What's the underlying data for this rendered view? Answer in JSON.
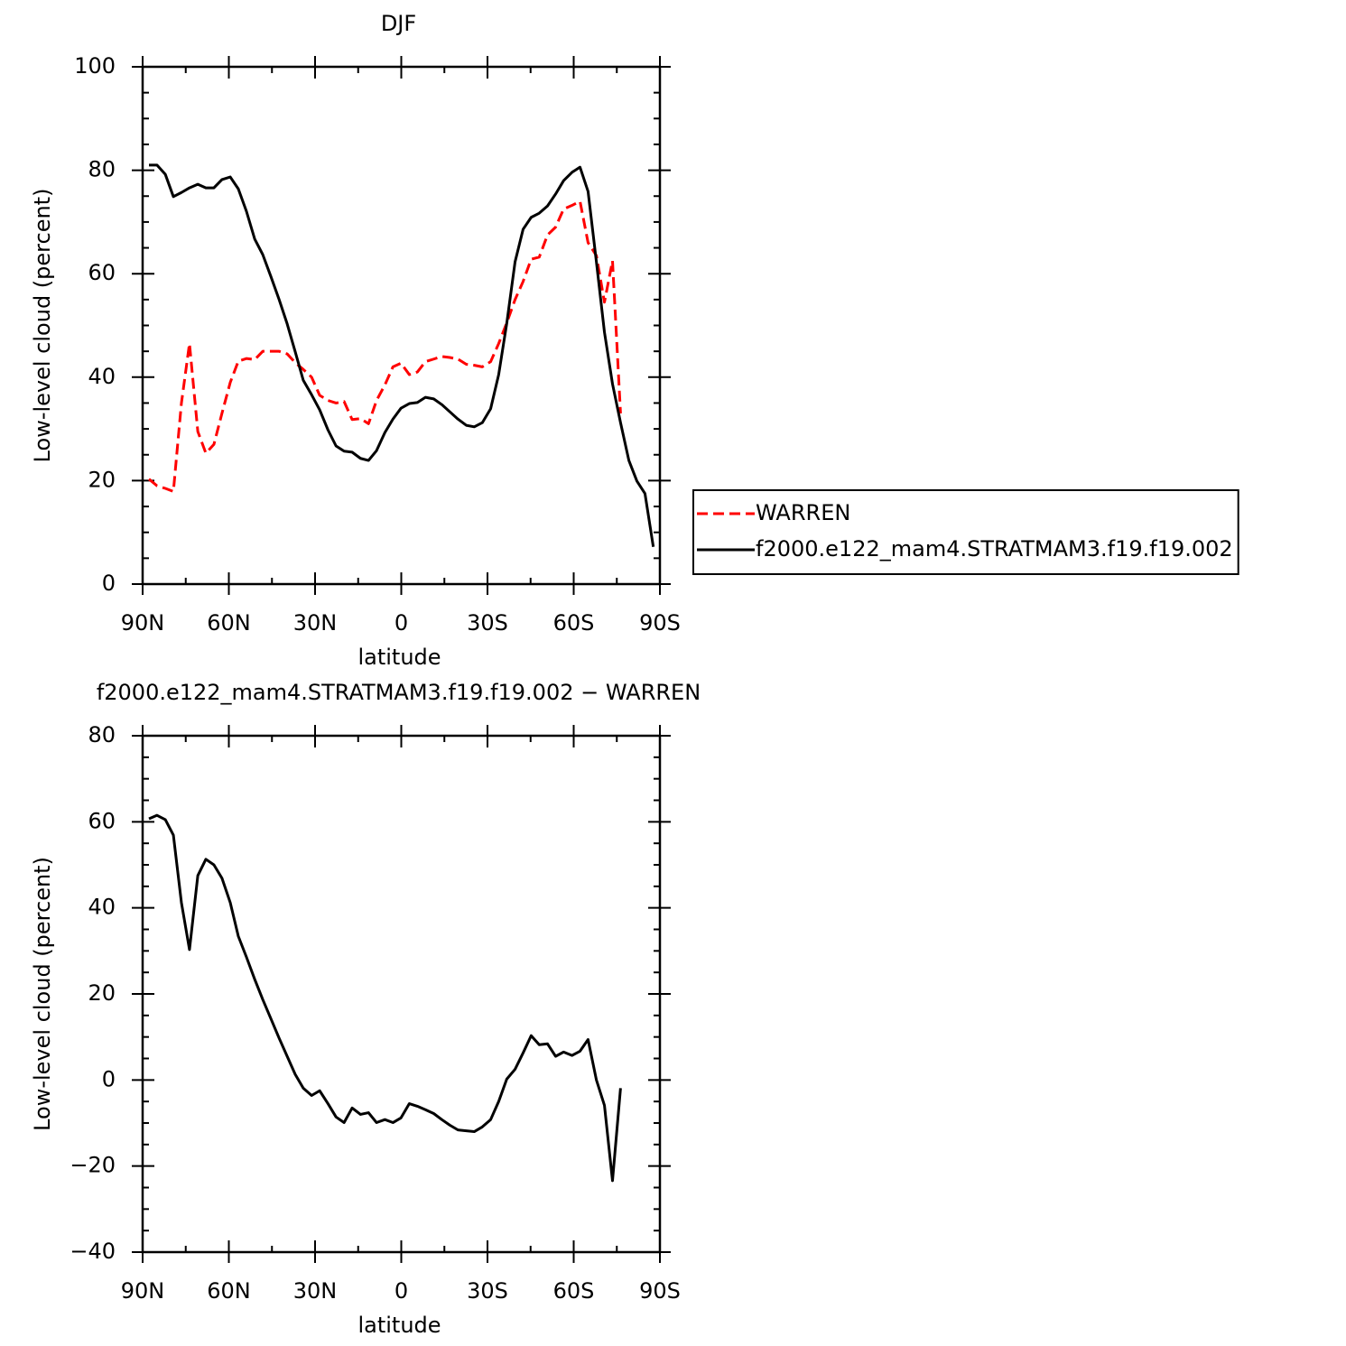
{
  "chart_data": [
    {
      "type": "line",
      "title": "DJF",
      "x_label": "latitude",
      "y_label": "Low-level cloud (percent)",
      "x": [
        87.8,
        85.0,
        82.1,
        79.3,
        76.5,
        73.7,
        70.8,
        68.0,
        65.2,
        62.4,
        59.5,
        56.7,
        53.9,
        51.0,
        48.2,
        45.4,
        42.5,
        39.7,
        36.9,
        34.1,
        31.2,
        28.4,
        25.5,
        22.7,
        19.9,
        17.1,
        14.2,
        11.4,
        8.6,
        5.7,
        2.9,
        0.1,
        -2.8,
        -5.6,
        -8.4,
        -11.3,
        -14.1,
        -16.9,
        -19.7,
        -22.6,
        -25.4,
        -28.2,
        -31.1,
        -33.9,
        -36.7,
        -39.6,
        -42.4,
        -45.2,
        -48.0,
        -50.9,
        -53.7,
        -56.5,
        -59.4,
        -62.2,
        -65.0,
        -67.9,
        -70.7,
        -73.5,
        -76.3,
        -79.2,
        -82.0,
        -84.8,
        -87.7
      ],
      "xlim": [
        90,
        -90
      ],
      "xticks": [
        {
          "value": 90,
          "label": "90N"
        },
        {
          "value": 60,
          "label": "60N"
        },
        {
          "value": 30,
          "label": "30N"
        },
        0,
        {
          "value": -30,
          "label": "30S"
        },
        {
          "value": -60,
          "label": "60S"
        },
        {
          "value": -90,
          "label": "90S"
        }
      ],
      "ylim": [
        0,
        100
      ],
      "yticks": [
        0,
        20,
        40,
        60,
        80,
        100
      ],
      "legend": "right",
      "series": [
        {
          "name": "WARREN",
          "color": "#ff0000",
          "line_style": "dashed",
          "values": [
            20.3,
            19.0,
            18.5,
            17.9,
            35.0,
            46.5,
            29.5,
            25.3,
            27.0,
            33.0,
            39.0,
            43.1,
            43.6,
            43.4,
            45.0,
            45.0,
            45.0,
            44.5,
            42.8,
            41.5,
            40.0,
            36.5,
            35.5,
            35.0,
            35.3,
            31.8,
            32.0,
            31.0,
            35.5,
            38.5,
            42.0,
            42.7,
            40.5,
            41.0,
            43.0,
            43.5,
            44.0,
            43.8,
            43.5,
            42.5,
            42.3,
            42.0,
            43.0,
            46.5,
            50.5,
            55.0,
            58.5,
            62.8,
            63.2,
            67.5,
            69.0,
            72.5,
            73.2,
            74.0,
            66.0,
            63.5,
            54.5,
            62.5,
            33.0,
            null,
            null,
            null,
            null
          ]
        },
        {
          "name": "f2000.e122_mam4.STRATMAM3.f19.f19.002",
          "color": "#000000",
          "line_style": "solid",
          "values": [
            81.0,
            81.0,
            79.2,
            74.9,
            75.7,
            76.6,
            77.3,
            76.6,
            76.6,
            78.2,
            78.7,
            76.4,
            72.1,
            66.7,
            63.7,
            59.5,
            55.0,
            50.3,
            44.9,
            39.4,
            36.6,
            33.7,
            29.8,
            26.7,
            25.7,
            25.5,
            24.3,
            23.9,
            25.8,
            29.3,
            31.9,
            34.0,
            34.9,
            35.1,
            36.1,
            35.8,
            34.7,
            33.3,
            31.9,
            30.7,
            30.4,
            31.2,
            33.9,
            40.5,
            50.4,
            62.3,
            68.6,
            70.9,
            71.7,
            73.1,
            75.4,
            78.0,
            79.6,
            80.6,
            75.9,
            62.3,
            48.7,
            38.7,
            31.2,
            23.9,
            19.9,
            17.5,
            7.2
          ]
        }
      ]
    },
    {
      "type": "line",
      "title": "f2000.e122_mam4.STRATMAM3.f19.f19.002 − WARREN",
      "x_label": "latitude",
      "y_label": "Low-level cloud (percent)",
      "x": [
        87.8,
        85.0,
        82.1,
        79.3,
        76.5,
        73.7,
        70.8,
        68.0,
        65.2,
        62.4,
        59.5,
        56.7,
        53.9,
        51.0,
        48.2,
        45.4,
        42.5,
        39.7,
        36.9,
        34.1,
        31.2,
        28.4,
        25.5,
        22.7,
        19.9,
        17.1,
        14.2,
        11.4,
        8.6,
        5.7,
        2.9,
        0.1,
        -2.8,
        -5.6,
        -8.4,
        -11.3,
        -14.1,
        -16.9,
        -19.7,
        -22.6,
        -25.4,
        -28.2,
        -31.1,
        -33.9,
        -36.7,
        -39.6,
        -42.4,
        -45.2,
        -48.0,
        -50.9,
        -53.7,
        -56.5,
        -59.4,
        -62.2,
        -65.0,
        -67.9,
        -70.7,
        -73.5,
        -76.3,
        -79.2,
        -82.0,
        -84.8,
        -87.7
      ],
      "xlim": [
        90,
        -90
      ],
      "xticks": [
        {
          "value": 90,
          "label": "90N"
        },
        {
          "value": 60,
          "label": "60N"
        },
        {
          "value": 30,
          "label": "30N"
        },
        0,
        {
          "value": -30,
          "label": "30S"
        },
        {
          "value": -60,
          "label": "60S"
        },
        {
          "value": -90,
          "label": "90S"
        }
      ],
      "ylim": [
        -40,
        80
      ],
      "yticks": [
        {
          "value": -40,
          "label": "−40"
        },
        {
          "value": -20,
          "label": "−20"
        },
        0,
        20,
        40,
        60,
        80
      ],
      "series": [
        {
          "color": "#000000",
          "line_style": "solid",
          "values": [
            60.7,
            61.5,
            60.5,
            56.9,
            41.2,
            30.3,
            47.5,
            51.3,
            50.0,
            46.9,
            41.2,
            33.4,
            28.6,
            23.4,
            18.7,
            14.3,
            9.7,
            5.5,
            1.3,
            -1.9,
            -3.6,
            -2.5,
            -5.5,
            -8.6,
            -9.9,
            -6.5,
            -8.0,
            -7.6,
            -9.9,
            -9.2,
            -9.9,
            -8.8,
            -5.5,
            -6.1,
            -6.9,
            -7.8,
            -9.2,
            -10.5,
            -11.6,
            -11.8,
            -12.0,
            -10.9,
            -9.2,
            -5.0,
            0.2,
            2.5,
            6.3,
            10.3,
            8.2,
            8.4,
            5.5,
            6.5,
            5.7,
            6.7,
            9.4,
            0.0,
            -5.9,
            -23.4,
            -1.9,
            null,
            null,
            null,
            null
          ]
        }
      ]
    }
  ]
}
